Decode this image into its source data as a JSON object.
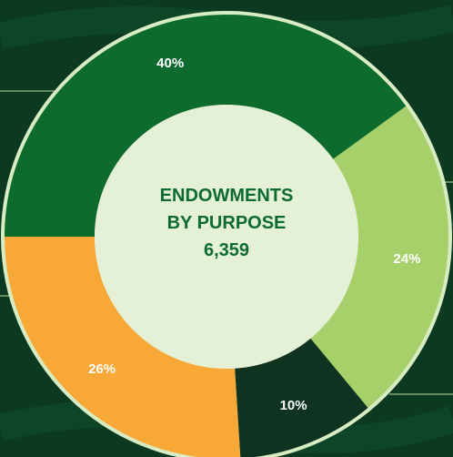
{
  "chart_data": {
    "type": "donut",
    "title": "ENDOWMENTS BY PURPOSE",
    "total": "6,359",
    "values": [
      40,
      24,
      10,
      26
    ],
    "value_labels": [
      "40%",
      "24%",
      "10%",
      "26%"
    ],
    "colors": [
      "#0d6b2e",
      "#a6d06a",
      "#0e3320",
      "#f7a837"
    ]
  }
}
